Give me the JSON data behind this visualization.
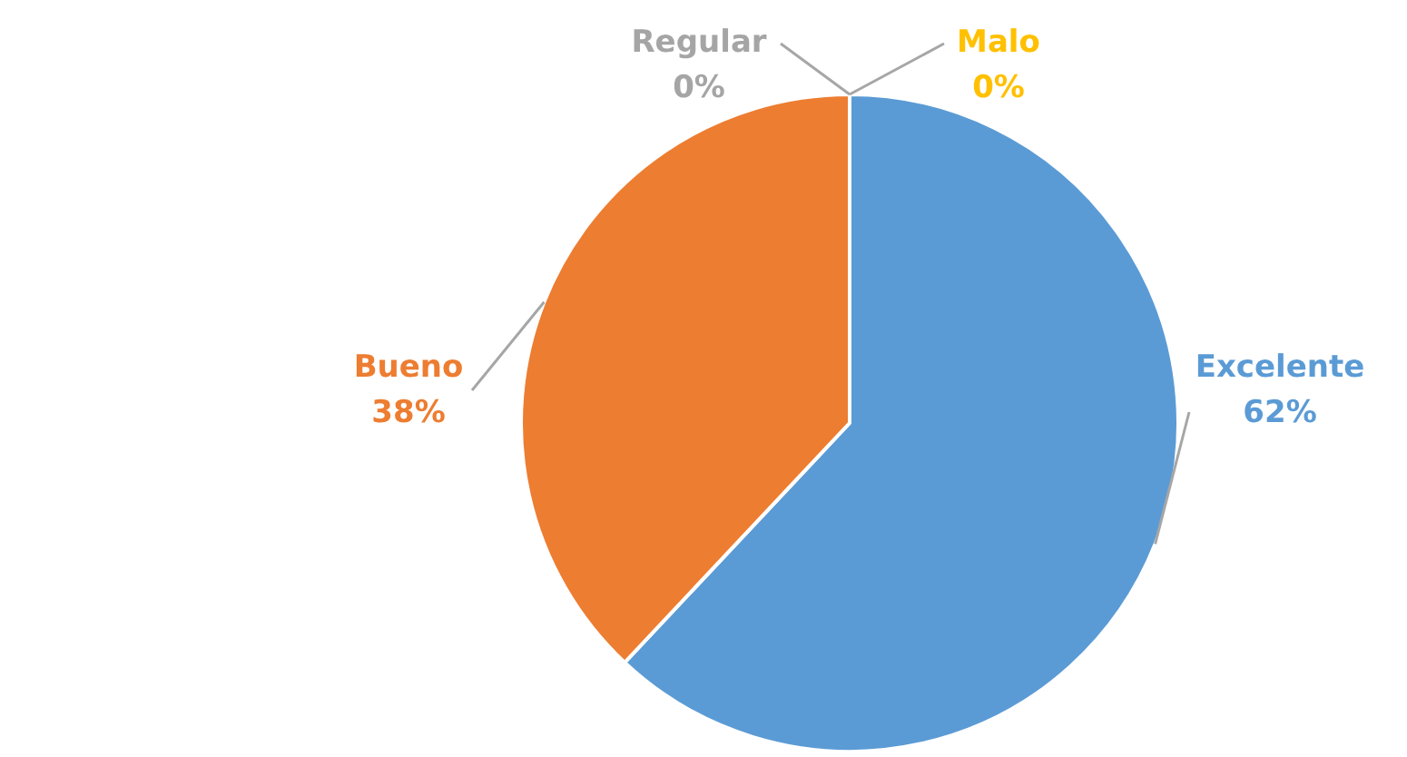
{
  "chart_data": {
    "type": "pie",
    "categories": [
      "Excelente",
      "Bueno",
      "Regular",
      "Malo"
    ],
    "values": [
      62,
      38,
      0,
      0
    ],
    "colors": [
      "#5b9bd5",
      "#ed7d31",
      "#a5a5a5",
      "#ffc000"
    ],
    "value_labels": [
      "62%",
      "38%",
      "0%",
      "0%"
    ],
    "legend": false
  }
}
